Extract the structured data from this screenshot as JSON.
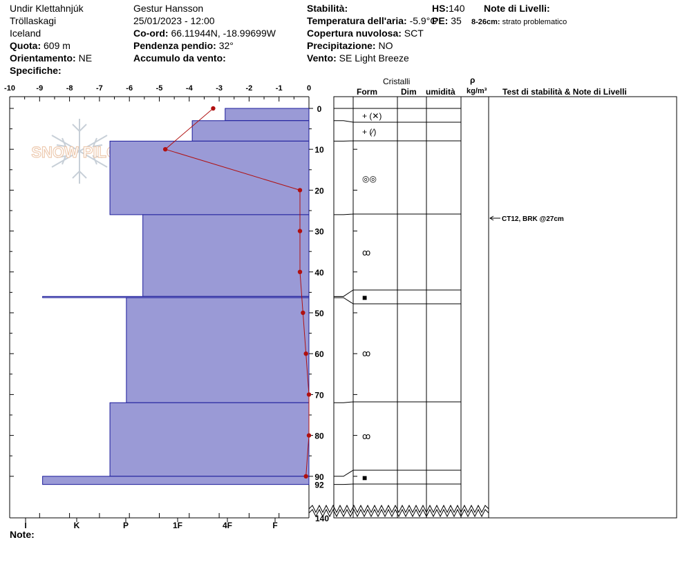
{
  "header": {
    "location": "Undir Klettahnjúk",
    "area": "Tröllaskagi",
    "country": "Iceland",
    "elevation_label": "Quota:",
    "elevation_value": "609 m",
    "aspect_label": "Orientamento:",
    "aspect_value": "NE",
    "specifics_label": "Specifiche:",
    "observer": "Gestur Hansson",
    "datetime": "25/01/2023 - 12:00",
    "coord_label": "Co-ord:",
    "coord_value": "66.11944N, -18.99699W",
    "slope_label": "Pendenza pendio:",
    "slope_value": "32°",
    "wind_loading_label": "Accumulo da vento:",
    "stability_label": "Stabilità:",
    "air_temp_label": "Temperatura dell'aria:",
    "air_temp_value": "-5.9°C",
    "cloud_label": "Copertura nuvolosa:",
    "cloud_value": "SCT",
    "precip_label": "Precipitazione:",
    "precip_value": "NO",
    "wind_label": "Vento:",
    "wind_value": "SE  Light Breeze",
    "hs_label": "HS:",
    "hs_value": "140",
    "pe_label": "PE:",
    "pe_value": "35",
    "layer_notes_label": "Note di Livelli:",
    "layer_note_range": "8-26cm:",
    "layer_note_text": "strato problematico",
    "note_label": "Note:",
    "logo_text": "SNOW PILOT"
  },
  "columns": {
    "cristalli": "Cristalli",
    "form": "Form",
    "dim": "Dim",
    "umidita": "umidità",
    "rho": "ρ",
    "density_unit": "kg/m³",
    "tests": "Test di stabilità & Note di Livelli"
  },
  "colors": {
    "hardness_fill": "#9a9ad6",
    "hardness_stroke": "#1a1a9a",
    "temp_line": "#b01010"
  },
  "chart_data": {
    "type": "bar",
    "temperature_axis": {
      "min": -10,
      "max": 0,
      "ticks": [
        "-10",
        "-9",
        "-8",
        "-7",
        "-6",
        "-5",
        "-4",
        "-3",
        "-2",
        "-1",
        "0"
      ]
    },
    "hardness_axis": {
      "labels": [
        "I",
        "K",
        "P",
        "1F",
        "4F",
        "F"
      ]
    },
    "depth_axis": {
      "min": 0,
      "max": 140,
      "ticks": [
        "0",
        "10",
        "20",
        "30",
        "40",
        "50",
        "60",
        "70",
        "80",
        "90"
      ],
      "hs_label": "92",
      "total_label": "140"
    },
    "layers": [
      {
        "top": 0,
        "bottom": 3,
        "hardness_temp": -2.8
      },
      {
        "top": 3,
        "bottom": 8,
        "hardness_temp": -3.9
      },
      {
        "top": 8,
        "bottom": 26,
        "hardness_temp": -6.65
      },
      {
        "top": 26,
        "bottom": 46,
        "hardness_temp": -5.55
      },
      {
        "top": 46,
        "bottom": 46.3,
        "hardness_temp": -8.9
      },
      {
        "top": 46.3,
        "bottom": 72,
        "hardness_temp": -6.1
      },
      {
        "top": 72,
        "bottom": 90,
        "hardness_temp": -6.65
      },
      {
        "top": 90,
        "bottom": 92,
        "hardness_temp": -8.9
      }
    ],
    "temperature_profile": [
      {
        "depth": 0,
        "temp": -3.2
      },
      {
        "depth": 10,
        "temp": -4.8
      },
      {
        "depth": 20,
        "temp": -0.3
      },
      {
        "depth": 30,
        "temp": -0.3
      },
      {
        "depth": 40,
        "temp": -0.3
      },
      {
        "depth": 50,
        "temp": -0.2
      },
      {
        "depth": 60,
        "temp": -0.1
      },
      {
        "depth": 70,
        "temp": 0.0
      },
      {
        "depth": 80,
        "temp": 0.0
      },
      {
        "depth": 90,
        "temp": -0.1
      }
    ],
    "crystal_forms": [
      {
        "label": "+ (✕)",
        "icon": "precipitation-particles-icon"
      },
      {
        "label": "+ (⁄)",
        "icon": "decomposing-particles-icon"
      },
      {
        "label": "◎◎",
        "icon": "rounded-grains-icon"
      },
      {
        "label": "ꝏ",
        "icon": "faceted-crystals-icon"
      },
      {
        "label": "■",
        "icon": "ice-crust-icon"
      },
      {
        "label": "ꝏ",
        "icon": "faceted-crystals-icon"
      },
      {
        "label": "ꝏ",
        "icon": "faceted-crystals-icon"
      },
      {
        "label": "■",
        "icon": "ice-crust-icon"
      }
    ],
    "stability_test": {
      "label": "CT12, BRK @27cm",
      "depth": 27
    }
  }
}
